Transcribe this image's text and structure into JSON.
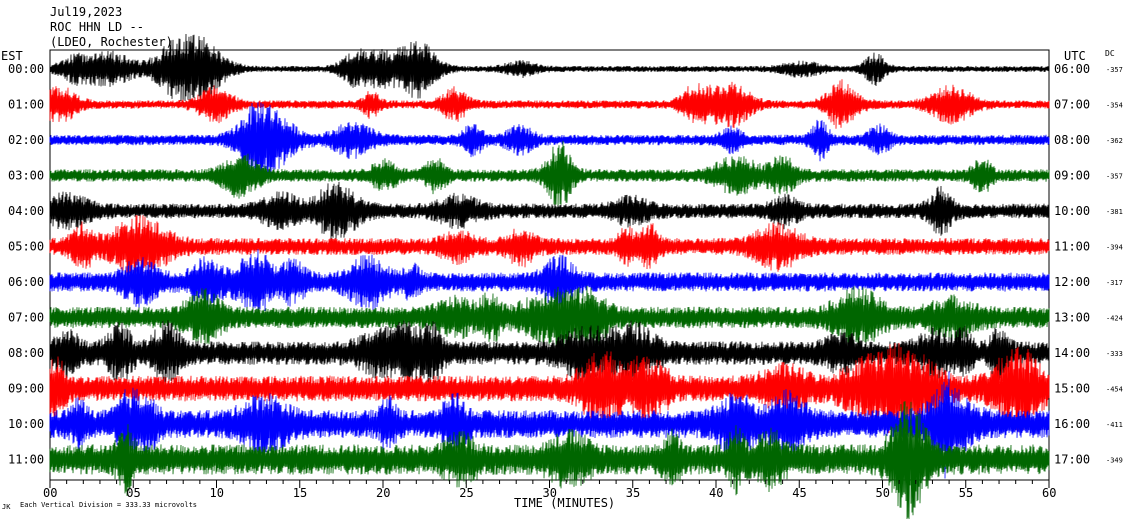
{
  "header": {
    "date": "Jul19,2023",
    "station": "ROC HHN LD --",
    "location": "(LDEO, Rochester)"
  },
  "left_axis_title": "EST",
  "right_axis_title": "UTC",
  "dc_title": "DC",
  "footer": {
    "corner_mark": "JK",
    "scale_note": "Each Vertical Division =  333.33 microvolts",
    "xlabel": "TIME (MINUTES)"
  },
  "chart_data": {
    "type": "line",
    "title": "",
    "xlabel": "TIME (MINUTES)",
    "xlim": [
      0,
      60
    ],
    "x_ticks": [
      "00",
      "05",
      "10",
      "15",
      "20",
      "25",
      "30",
      "35",
      "40",
      "45",
      "50",
      "55",
      "60"
    ],
    "trace_colors": [
      "#000000",
      "#ff0000",
      "#0000ff",
      "#006600"
    ],
    "rows": [
      {
        "est": "00:00",
        "utc": "06:00",
        "dc": "-357"
      },
      {
        "est": "01:00",
        "utc": "07:00",
        "dc": "-354"
      },
      {
        "est": "02:00",
        "utc": "08:00",
        "dc": "-362"
      },
      {
        "est": "03:00",
        "utc": "09:00",
        "dc": "-357"
      },
      {
        "est": "04:00",
        "utc": "10:00",
        "dc": "-381"
      },
      {
        "est": "05:00",
        "utc": "11:00",
        "dc": "-394"
      },
      {
        "est": "06:00",
        "utc": "12:00",
        "dc": "-317"
      },
      {
        "est": "07:00",
        "utc": "13:00",
        "dc": "-424"
      },
      {
        "est": "08:00",
        "utc": "14:00",
        "dc": "-333"
      },
      {
        "est": "09:00",
        "utc": "15:00",
        "dc": "-454"
      },
      {
        "est": "10:00",
        "utc": "16:00",
        "dc": "-411"
      },
      {
        "est": "11:00",
        "utc": "17:00",
        "dc": "-349"
      }
    ]
  }
}
